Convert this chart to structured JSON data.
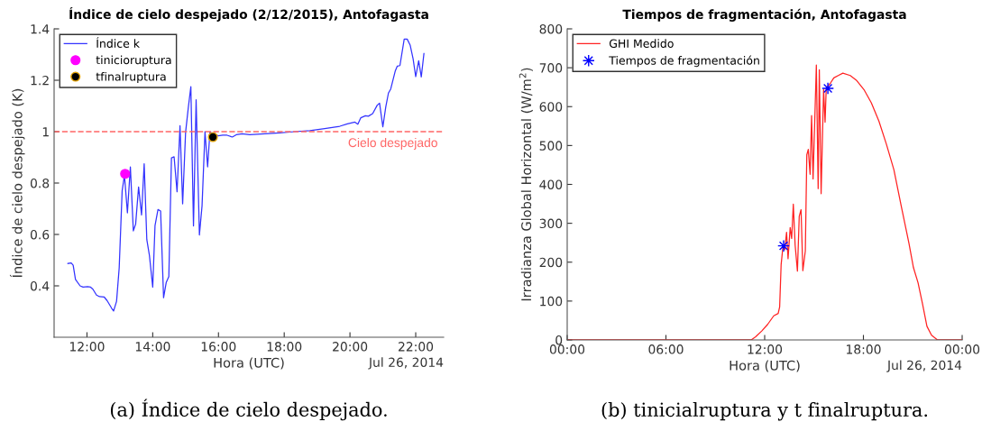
{
  "chart_data": [
    {
      "type": "line",
      "title": "Índice de cielo despejado (2/12/2015), Antofagasta",
      "xlabel": "Hora (UTC)",
      "ylabel": "Índice de cielo despejado (K)",
      "xlim": [
        11.0,
        22.85
      ],
      "xticks": [
        {
          "value": 12,
          "label": "12:00"
        },
        {
          "value": 14,
          "label": "14:00"
        },
        {
          "value": 16,
          "label": "16:00"
        },
        {
          "value": 18,
          "label": "18:00"
        },
        {
          "value": 20,
          "label": "20:00"
        },
        {
          "value": 22,
          "label": "22:00"
        }
      ],
      "ylim": [
        0.2,
        1.4
      ],
      "yticks": [
        0.4,
        0.6,
        0.8,
        1,
        1.2,
        1.4
      ],
      "grid": false,
      "legend": "top left",
      "ref_lines": [
        {
          "axis": "y",
          "value": 1,
          "label": "Cielo despejado",
          "color": "#ff6666",
          "line_style": "dashed"
        }
      ],
      "annotations": [
        "Jul 26, 2014",
        "(a) Índice de cielo despejado."
      ],
      "series": [
        {
          "name": "Índice k",
          "type": "line",
          "color": "#3333ff",
          "marker": "none",
          "x": [
            11.42,
            11.52,
            11.58,
            11.65,
            11.79,
            11.88,
            12.02,
            12.11,
            12.18,
            12.29,
            12.38,
            12.52,
            12.61,
            12.75,
            12.81,
            12.9,
            12.98,
            13.07,
            13.14,
            13.23,
            13.32,
            13.41,
            13.48,
            13.57,
            13.66,
            13.74,
            13.82,
            13.9,
            14.0,
            14.07,
            14.16,
            14.24,
            14.33,
            14.41,
            14.49,
            14.57,
            14.65,
            14.74,
            14.83,
            14.91,
            15.0,
            15.08,
            15.16,
            15.24,
            15.32,
            15.42,
            15.5,
            15.59,
            15.67,
            15.74,
            15.83,
            15.99,
            16.13,
            16.26,
            16.42,
            16.54,
            16.72,
            16.95,
            17.41,
            17.86,
            18.32,
            18.78,
            19.23,
            19.69,
            19.92,
            20.15,
            20.24,
            20.33,
            20.47,
            20.56,
            20.69,
            20.83,
            20.9,
            21.0,
            21.09,
            21.17,
            21.24,
            21.38,
            21.44,
            21.52,
            21.65,
            21.74,
            21.83,
            21.92,
            22.0,
            22.09,
            22.17,
            22.25
          ],
          "values": [
            0.487,
            0.489,
            0.48,
            0.425,
            0.4,
            0.395,
            0.397,
            0.395,
            0.387,
            0.364,
            0.358,
            0.357,
            0.343,
            0.313,
            0.302,
            0.34,
            0.47,
            0.77,
            0.83,
            0.684,
            0.863,
            0.614,
            0.64,
            0.785,
            0.676,
            0.875,
            0.58,
            0.518,
            0.395,
            0.635,
            0.697,
            0.691,
            0.354,
            0.413,
            0.436,
            0.898,
            0.902,
            0.766,
            1.023,
            0.719,
            0.998,
            1.091,
            1.175,
            0.633,
            1.124,
            0.598,
            0.711,
            1.0,
            0.863,
            0.998,
            null,
            0.984,
            0.986,
            0.986,
            0.979,
            0.988,
            0.992,
            0.988,
            0.992,
            0.995,
            1.0,
            1.004,
            1.012,
            1.021,
            1.03,
            1.037,
            1.029,
            1.054,
            1.062,
            1.06,
            1.07,
            1.103,
            1.111,
            1.019,
            1.097,
            1.15,
            1.166,
            1.237,
            1.255,
            1.257,
            1.36,
            1.36,
            1.337,
            1.284,
            1.214,
            1.276,
            1.213,
            1.304
          ]
        },
        {
          "name": "tinicioruptura",
          "type": "scatter",
          "color": "#ff00ff",
          "marker": "circle",
          "x": [
            13.16
          ],
          "values": [
            0.836
          ]
        },
        {
          "name": "tfinalruptura",
          "type": "scatter",
          "color": "#000000",
          "marker": "circle",
          "x": [
            15.83
          ],
          "values": [
            0.979
          ]
        }
      ]
    },
    {
      "type": "line",
      "title": "Tiempos de fragmentación, Antofagasta",
      "xlabel": "Hora (UTC)",
      "ylabel": "Irradianza Global Horizontal (W/m$^{2}$)",
      "xlim": [
        0,
        24
      ],
      "xticks": [
        {
          "value": 0,
          "label": "00:00"
        },
        {
          "value": 6,
          "label": "06:00"
        },
        {
          "value": 12,
          "label": "12:00"
        },
        {
          "value": 18,
          "label": "18:00"
        },
        {
          "value": 24,
          "label": "00:00"
        }
      ],
      "ylim": [
        0,
        800
      ],
      "yticks": [
        0,
        100,
        200,
        300,
        400,
        500,
        600,
        700,
        800
      ],
      "grid": false,
      "legend": "top left",
      "annotations": [
        "Jul 26, 2014",
        "(b) tinicialruptura y t finalruptura."
      ],
      "series": [
        {
          "name": "GHI Medido",
          "type": "line",
          "color": "#ff2222",
          "marker": "none",
          "x": [
            0,
            11.18,
            11.45,
            11.82,
            12.18,
            12.55,
            12.82,
            12.91,
            13.0,
            13.11,
            13.22,
            13.33,
            13.42,
            13.55,
            13.64,
            13.74,
            13.85,
            13.99,
            14.1,
            14.21,
            14.32,
            14.47,
            14.56,
            14.65,
            14.76,
            14.85,
            14.94,
            15.14,
            15.25,
            15.32,
            15.43,
            15.58,
            15.67,
            15.74,
            16.02,
            16.2,
            16.47,
            16.75,
            17.2,
            17.57,
            18.03,
            18.48,
            18.94,
            19.4,
            19.85,
            20.31,
            20.77,
            21.04,
            21.32,
            21.59,
            21.86,
            22.14,
            22.5,
            24
          ],
          "values": [
            0,
            0,
            8,
            23,
            40,
            62,
            68,
            85,
            194,
            240,
            232,
            277,
            209,
            289,
            261,
            349,
            244,
            177,
            318,
            335,
            178,
            229,
            476,
            490,
            426,
            577,
            414,
            707,
            389,
            695,
            376,
            644,
            560,
            647,
            662,
            674,
            680,
            686,
            680,
            668,
            644,
            610,
            563,
            503,
            438,
            342,
            248,
            186,
            147,
            93,
            35,
            12,
            0,
            0
          ]
        },
        {
          "name": "Tiempos de fragmentación",
          "type": "scatter",
          "color": "#0000ff",
          "marker": "star",
          "x": [
            13.15,
            15.84
          ],
          "values": [
            242,
            647
          ]
        }
      ]
    }
  ]
}
